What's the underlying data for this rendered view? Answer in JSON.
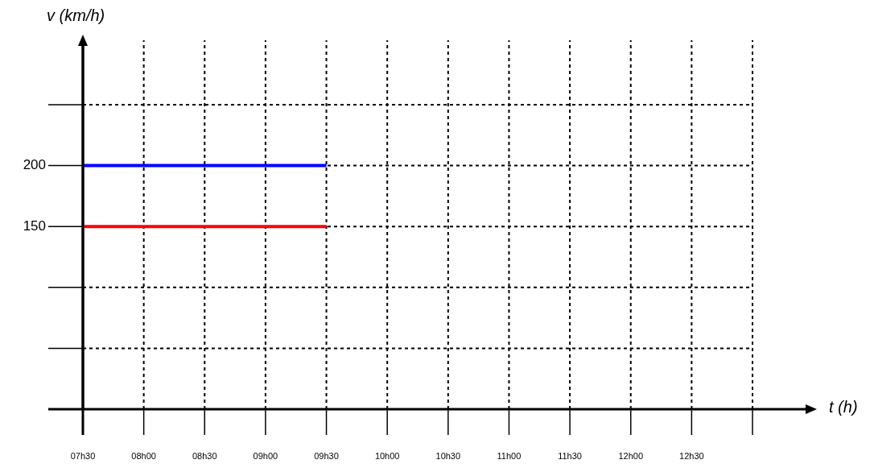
{
  "chart_data": {
    "type": "line",
    "xlabel": "t (h)",
    "ylabel": "v (km/h)",
    "categories": [
      "07h30",
      "08h00",
      "08h30",
      "09h00",
      "09h30",
      "10h00",
      "10h30",
      "11h00",
      "11h30",
      "12h00",
      "12h30",
      null
    ],
    "series": [
      {
        "color": "#0000ff",
        "values": [
          200,
          200,
          200,
          200,
          200,
          null,
          null,
          null,
          null,
          null,
          null,
          null
        ]
      },
      {
        "color": "#ff0000",
        "values": [
          150,
          150,
          150,
          150,
          150,
          null,
          null,
          null,
          null,
          null,
          null,
          null
        ]
      }
    ],
    "ylim": [
      0,
      250
    ],
    "yticks": [
      {
        "value": 0,
        "label": null
      },
      {
        "value": 50,
        "label": null
      },
      {
        "value": 100,
        "label": null
      },
      150,
      200,
      {
        "value": 250,
        "label": null
      }
    ],
    "grid": true,
    "marker": "none",
    "line_style": "solid"
  }
}
